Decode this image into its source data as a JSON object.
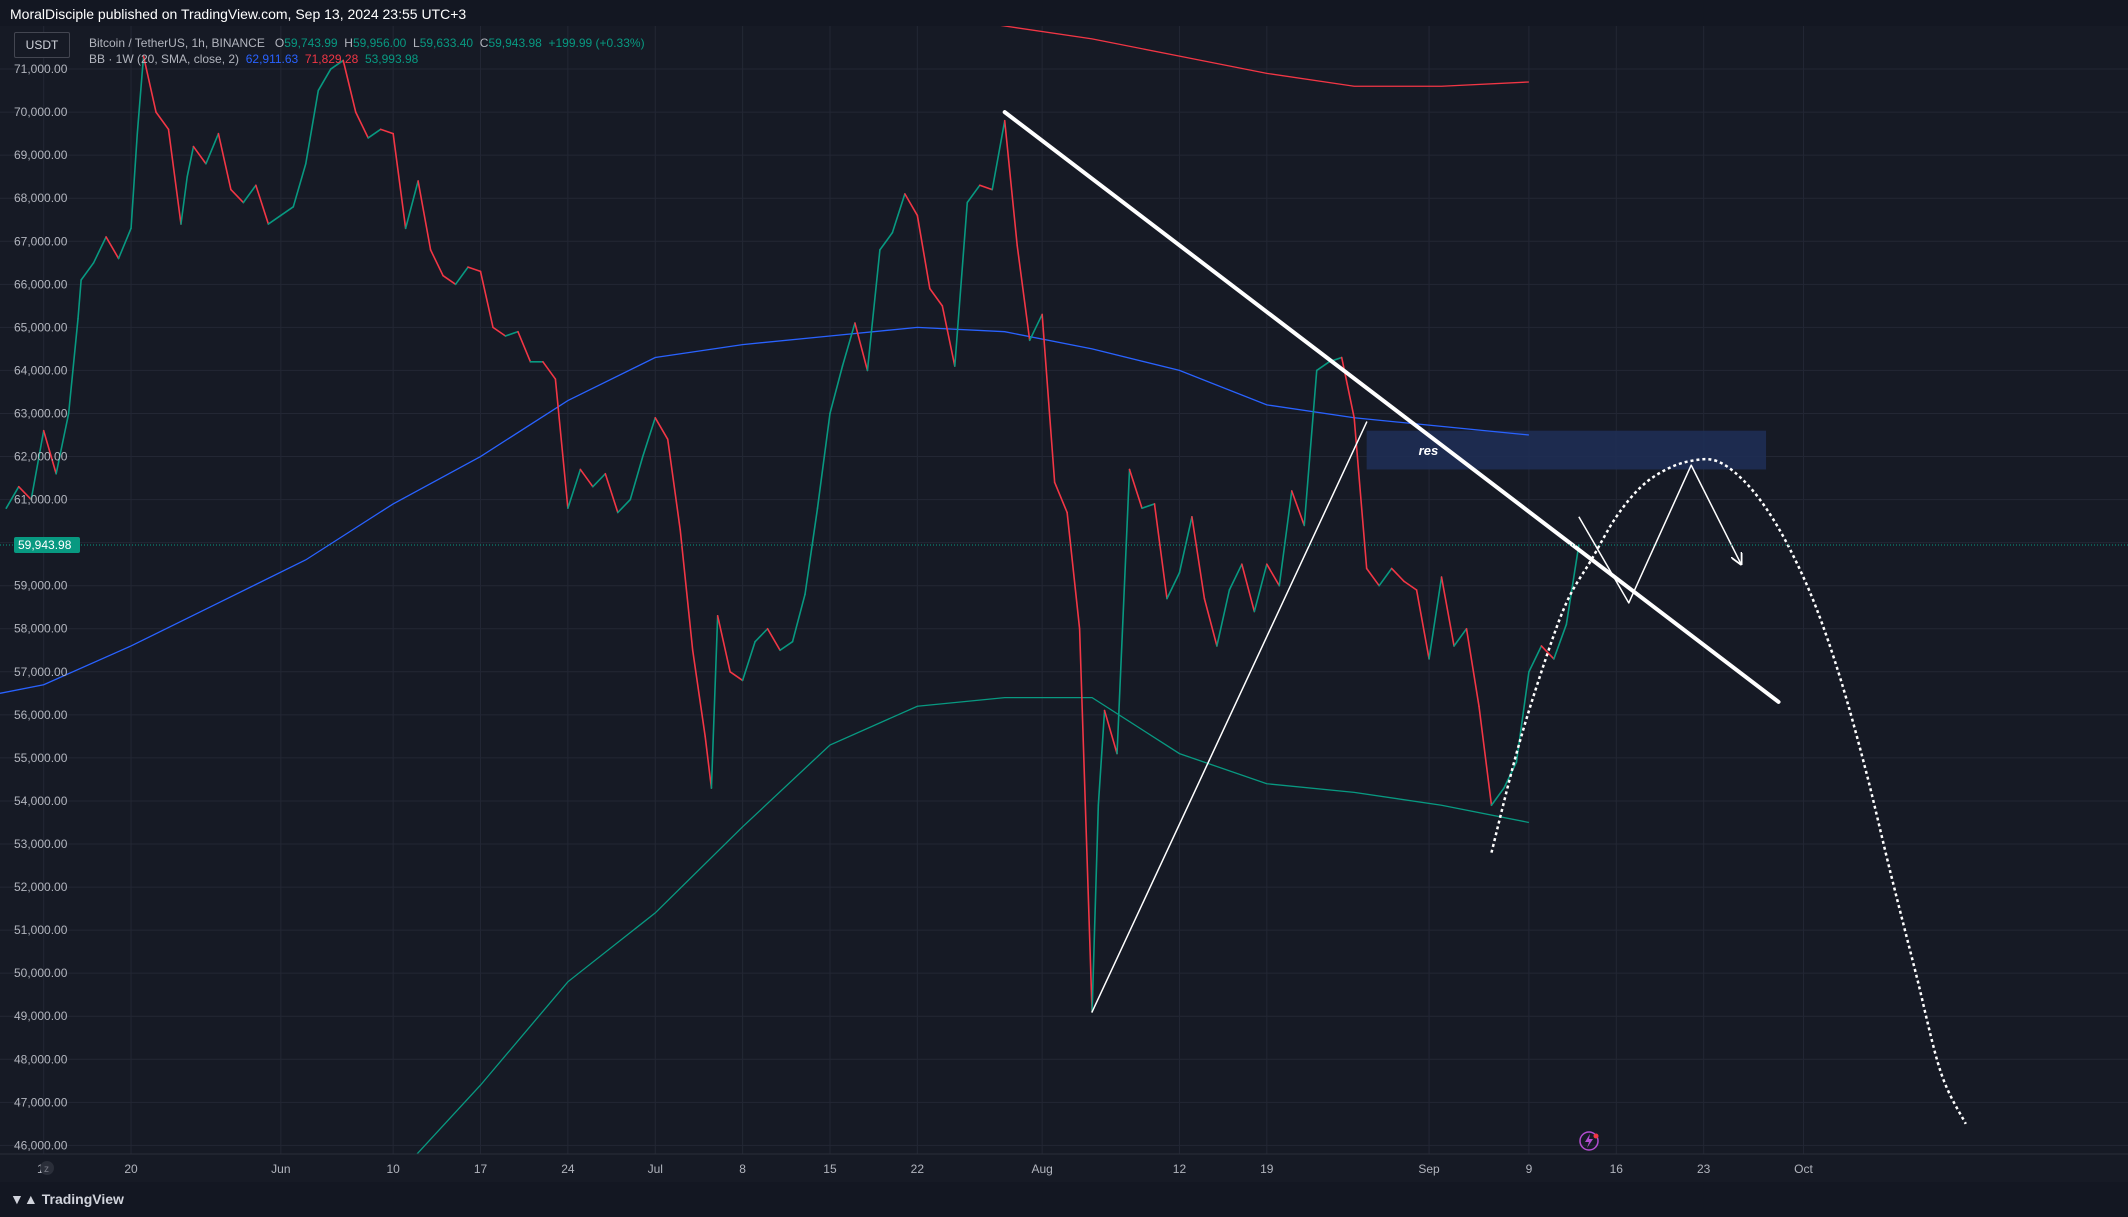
{
  "header": {
    "publisher_line": "MoralDisciple published on TradingView.com, Sep 13, 2024 23:55 UTC+3"
  },
  "footer": {
    "brand": "TradingView"
  },
  "currency": "USDT",
  "legend": {
    "symbol": "Bitcoin / TetherUS, 1h, BINANCE",
    "o_label": "O",
    "o": "59,743.99",
    "h_label": "H",
    "h": "59,956.00",
    "l_label": "L",
    "l": "59,633.40",
    "c_label": "C",
    "c": "59,943.98",
    "change": "+199.99 (+0.33%)",
    "bb_label": "BB · 1W (20, SMA, close, 2)",
    "bb_basis": "62,911.63",
    "bb_upper": "71,829.28",
    "bb_lower": "53,993.98"
  },
  "colors": {
    "background": "#161a25",
    "grid": "#232734",
    "up": "#089981",
    "down": "#f23645",
    "bb_basis": "#2962ff",
    "bb_upper": "#f23645",
    "bb_lower": "#089981",
    "drawing": "#ffffff",
    "res_zone": "#1e2f57",
    "price_tag": "#089981"
  },
  "chart_data": {
    "type": "line",
    "axes": {
      "y_ticks": [
        "71,000.00",
        "70,000.00",
        "69,000.00",
        "68,000.00",
        "67,000.00",
        "66,000.00",
        "65,000.00",
        "64,000.00",
        "63,000.00",
        "62,000.00",
        "61,000.00",
        "60,000.00",
        "59,000.00",
        "58,000.00",
        "57,000.00",
        "56,000.00",
        "55,000.00",
        "54,000.00",
        "53,000.00",
        "52,000.00",
        "51,000.00",
        "50,000.00",
        "49,000.00",
        "48,000.00",
        "47,000.00",
        "46,000.00"
      ],
      "x_ticks": [
        {
          "label": "13",
          "date": "2024-05-13"
        },
        {
          "label": "20",
          "date": "2024-05-20"
        },
        {
          "label": "Jun",
          "date": "2024-06-01"
        },
        {
          "label": "10",
          "date": "2024-06-10"
        },
        {
          "label": "17",
          "date": "2024-06-17"
        },
        {
          "label": "24",
          "date": "2024-06-24"
        },
        {
          "label": "Jul",
          "date": "2024-07-01"
        },
        {
          "label": "8",
          "date": "2024-07-08"
        },
        {
          "label": "15",
          "date": "2024-07-15"
        },
        {
          "label": "22",
          "date": "2024-07-22"
        },
        {
          "label": "Aug",
          "date": "2024-08-01"
        },
        {
          "label": "12",
          "date": "2024-08-12"
        },
        {
          "label": "19",
          "date": "2024-08-19"
        },
        {
          "label": "Sep",
          "date": "2024-09-01"
        },
        {
          "label": "9",
          "date": "2024-09-09"
        },
        {
          "label": "16",
          "date": "2024-09-16"
        },
        {
          "label": "23",
          "date": "2024-09-23"
        },
        {
          "label": "Oct",
          "date": "2024-10-01"
        }
      ],
      "ylim": [
        45800,
        72000
      ],
      "xlim": [
        "2024-05-09T12:00",
        "2024-10-27T00:00"
      ],
      "grid": true
    },
    "current_price": 59943.98,
    "current_price_label": "59,943.98",
    "price_path": [
      [
        "2024-05-10",
        60800
      ],
      [
        "2024-05-11",
        61300
      ],
      [
        "2024-05-12",
        61000
      ],
      [
        "2024-05-13",
        62600
      ],
      [
        "2024-05-14",
        61600
      ],
      [
        "2024-05-15",
        63000
      ],
      [
        "2024-05-15T18:00",
        65200
      ],
      [
        "2024-05-16",
        66100
      ],
      [
        "2024-05-17",
        66500
      ],
      [
        "2024-05-18",
        67100
      ],
      [
        "2024-05-19",
        66600
      ],
      [
        "2024-05-20",
        67300
      ],
      [
        "2024-05-20T12:00",
        69500
      ],
      [
        "2024-05-21",
        71300
      ],
      [
        "2024-05-22",
        70000
      ],
      [
        "2024-05-23",
        69600
      ],
      [
        "2024-05-24",
        67400
      ],
      [
        "2024-05-24T12:00",
        68500
      ],
      [
        "2024-05-25",
        69200
      ],
      [
        "2024-05-26",
        68800
      ],
      [
        "2024-05-27",
        69500
      ],
      [
        "2024-05-28",
        68200
      ],
      [
        "2024-05-29",
        67900
      ],
      [
        "2024-05-30",
        68300
      ],
      [
        "2024-05-31",
        67400
      ],
      [
        "2024-06-01",
        67600
      ],
      [
        "2024-06-02",
        67800
      ],
      [
        "2024-06-03",
        68800
      ],
      [
        "2024-06-04",
        70500
      ],
      [
        "2024-06-05",
        71000
      ],
      [
        "2024-06-06",
        71200
      ],
      [
        "2024-06-07",
        70000
      ],
      [
        "2024-06-08",
        69400
      ],
      [
        "2024-06-09",
        69600
      ],
      [
        "2024-06-10",
        69500
      ],
      [
        "2024-06-11",
        67300
      ],
      [
        "2024-06-12",
        68400
      ],
      [
        "2024-06-13",
        66800
      ],
      [
        "2024-06-14",
        66200
      ],
      [
        "2024-06-15",
        66000
      ],
      [
        "2024-06-16",
        66400
      ],
      [
        "2024-06-17",
        66300
      ],
      [
        "2024-06-18",
        65000
      ],
      [
        "2024-06-19",
        64800
      ],
      [
        "2024-06-20",
        64900
      ],
      [
        "2024-06-21",
        64200
      ],
      [
        "2024-06-22",
        64200
      ],
      [
        "2024-06-23",
        63800
      ],
      [
        "2024-06-24",
        60800
      ],
      [
        "2024-06-25",
        61700
      ],
      [
        "2024-06-26",
        61300
      ],
      [
        "2024-06-27",
        61600
      ],
      [
        "2024-06-28",
        60700
      ],
      [
        "2024-06-29",
        61000
      ],
      [
        "2024-06-30",
        62000
      ],
      [
        "2024-07-01",
        62900
      ],
      [
        "2024-07-02",
        62400
      ],
      [
        "2024-07-03",
        60300
      ],
      [
        "2024-07-04",
        57500
      ],
      [
        "2024-07-05",
        55500
      ],
      [
        "2024-07-05T12:00",
        54300
      ],
      [
        "2024-07-06",
        58300
      ],
      [
        "2024-07-07",
        57000
      ],
      [
        "2024-07-08",
        56800
      ],
      [
        "2024-07-09",
        57700
      ],
      [
        "2024-07-10",
        58000
      ],
      [
        "2024-07-11",
        57500
      ],
      [
        "2024-07-12",
        57700
      ],
      [
        "2024-07-13",
        58800
      ],
      [
        "2024-07-14",
        60800
      ],
      [
        "2024-07-15",
        63000
      ],
      [
        "2024-07-16",
        64100
      ],
      [
        "2024-07-17",
        65100
      ],
      [
        "2024-07-18",
        64000
      ],
      [
        "2024-07-19",
        66800
      ],
      [
        "2024-07-20",
        67200
      ],
      [
        "2024-07-21",
        68100
      ],
      [
        "2024-07-22",
        67600
      ],
      [
        "2024-07-23",
        65900
      ],
      [
        "2024-07-24",
        65500
      ],
      [
        "2024-07-25",
        64100
      ],
      [
        "2024-07-26",
        67900
      ],
      [
        "2024-07-27",
        68300
      ],
      [
        "2024-07-28",
        68200
      ],
      [
        "2024-07-29",
        69800
      ],
      [
        "2024-07-30",
        66900
      ],
      [
        "2024-07-31",
        64700
      ],
      [
        "2024-08-01",
        65300
      ],
      [
        "2024-08-02",
        61400
      ],
      [
        "2024-08-03",
        60700
      ],
      [
        "2024-08-04",
        58000
      ],
      [
        "2024-08-05",
        49100
      ],
      [
        "2024-08-05T12:00",
        53900
      ],
      [
        "2024-08-06",
        56100
      ],
      [
        "2024-08-07",
        55100
      ],
      [
        "2024-08-08",
        61700
      ],
      [
        "2024-08-09",
        60800
      ],
      [
        "2024-08-10",
        60900
      ],
      [
        "2024-08-11",
        58700
      ],
      [
        "2024-08-12",
        59300
      ],
      [
        "2024-08-13",
        60600
      ],
      [
        "2024-08-14",
        58700
      ],
      [
        "2024-08-15",
        57600
      ],
      [
        "2024-08-16",
        58900
      ],
      [
        "2024-08-17",
        59500
      ],
      [
        "2024-08-18",
        58400
      ],
      [
        "2024-08-19",
        59500
      ],
      [
        "2024-08-20",
        59000
      ],
      [
        "2024-08-21",
        61200
      ],
      [
        "2024-08-22",
        60400
      ],
      [
        "2024-08-23",
        64000
      ],
      [
        "2024-08-24",
        64200
      ],
      [
        "2024-08-25",
        64300
      ],
      [
        "2024-08-26",
        62900
      ],
      [
        "2024-08-27",
        59400
      ],
      [
        "2024-08-28",
        59000
      ],
      [
        "2024-08-29",
        59400
      ],
      [
        "2024-08-30",
        59100
      ],
      [
        "2024-08-31",
        58900
      ],
      [
        "2024-09-01",
        57300
      ],
      [
        "2024-09-02",
        59200
      ],
      [
        "2024-09-03",
        57600
      ],
      [
        "2024-09-04",
        58000
      ],
      [
        "2024-09-05",
        56200
      ],
      [
        "2024-09-06",
        53900
      ],
      [
        "2024-09-07",
        54300
      ],
      [
        "2024-09-08",
        54900
      ],
      [
        "2024-09-09",
        57000
      ],
      [
        "2024-09-10",
        57600
      ],
      [
        "2024-09-11",
        57300
      ],
      [
        "2024-09-12",
        58100
      ],
      [
        "2024-09-13",
        59944
      ]
    ],
    "series": [
      {
        "name": "BB · 1W (20, SMA, close, 2)",
        "role": "basis",
        "color": "#2962ff",
        "x": [
          "2024-05-09T12:00",
          "2024-05-13",
          "2024-05-20",
          "2024-05-27",
          "2024-06-03",
          "2024-06-10",
          "2024-06-17",
          "2024-06-24",
          "2024-07-01",
          "2024-07-08",
          "2024-07-15",
          "2024-07-22",
          "2024-07-29",
          "2024-08-05",
          "2024-08-12",
          "2024-08-19",
          "2024-08-26",
          "2024-09-02",
          "2024-09-09"
        ],
        "values": [
          56500,
          56700,
          57600,
          58600,
          59600,
          60900,
          62000,
          63300,
          64300,
          64600,
          64800,
          65000,
          64900,
          64500,
          64000,
          63200,
          62900,
          62700,
          62500
        ]
      },
      {
        "name": "BB · 1W (20, SMA, close, 2)",
        "role": "upper",
        "color": "#f23645",
        "x": [
          "2024-07-22",
          "2024-07-29",
          "2024-08-05",
          "2024-08-12",
          "2024-08-19",
          "2024-08-26",
          "2024-09-02",
          "2024-09-09"
        ],
        "values": [
          72300,
          72000,
          71700,
          71300,
          70900,
          70600,
          70600,
          70700
        ]
      },
      {
        "name": "BB · 1W (20, SMA, close, 2)",
        "role": "lower",
        "color": "#089981",
        "x": [
          "2024-06-10",
          "2024-06-17",
          "2024-06-24",
          "2024-07-01",
          "2024-07-08",
          "2024-07-15",
          "2024-07-22",
          "2024-07-29",
          "2024-08-05",
          "2024-08-12",
          "2024-08-19",
          "2024-08-26",
          "2024-09-02",
          "2024-09-09"
        ],
        "values": [
          45200,
          47400,
          49800,
          51400,
          53400,
          55300,
          56200,
          56400,
          56400,
          55100,
          54400,
          54200,
          53900,
          53500
        ]
      }
    ],
    "drawings": [
      {
        "type": "trendline",
        "points": [
          [
            "2024-07-29",
            70000
          ],
          [
            "2024-09-29",
            56300
          ]
        ],
        "width": 4
      },
      {
        "type": "trendline",
        "points": [
          [
            "2024-08-05",
            49100
          ],
          [
            "2024-08-27",
            62800
          ]
        ],
        "width": 1.5
      },
      {
        "type": "zone",
        "label": "res",
        "from": [
          "2024-08-27",
          62600
        ],
        "to": [
          "2024-09-28",
          61700
        ]
      },
      {
        "type": "path",
        "points": [
          [
            "2024-09-13",
            60600
          ],
          [
            "2024-09-17",
            58600
          ],
          [
            "2024-09-22",
            61800
          ],
          [
            "2024-09-26",
            59500
          ]
        ],
        "width": 1.5,
        "arrow": true
      },
      {
        "type": "dotted-arc",
        "points": [
          [
            "2024-09-06",
            52800
          ],
          [
            "2024-09-08",
            55100
          ],
          [
            "2024-09-10",
            57000
          ],
          [
            "2024-09-12",
            58600
          ],
          [
            "2024-09-14",
            59600
          ],
          [
            "2024-09-16",
            60600
          ],
          [
            "2024-09-18",
            61300
          ],
          [
            "2024-09-20",
            61700
          ],
          [
            "2024-09-22",
            61900
          ],
          [
            "2024-09-24",
            61900
          ],
          [
            "2024-09-26",
            61500
          ],
          [
            "2024-09-28",
            60800
          ],
          [
            "2024-09-30",
            59800
          ],
          [
            "2024-10-02",
            58500
          ],
          [
            "2024-10-04",
            56800
          ],
          [
            "2024-10-06",
            54700
          ],
          [
            "2024-10-08",
            52300
          ],
          [
            "2024-10-10",
            50000
          ],
          [
            "2024-10-12",
            47700
          ],
          [
            "2024-10-14",
            46500
          ]
        ],
        "width": 2.5
      }
    ]
  }
}
